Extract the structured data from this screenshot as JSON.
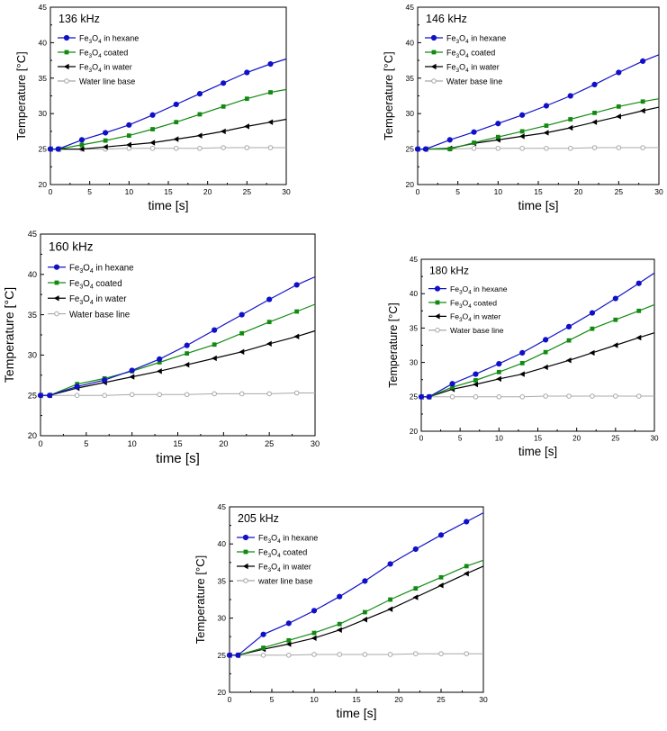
{
  "colors": {
    "hexane": "#1010c8",
    "coated": "#128a12",
    "water": "#000000",
    "base": "#a8a8a8"
  },
  "chart_data": [
    {
      "type": "line",
      "title": "136 kHz",
      "xlabel": "time [s]",
      "ylabel": "Temperature [°C]",
      "xlim": [
        0,
        30
      ],
      "ylim": [
        20,
        45
      ],
      "xticks": [
        0,
        5,
        10,
        15,
        20,
        25,
        30
      ],
      "yticks": [
        20,
        25,
        30,
        35,
        40,
        45
      ],
      "x": [
        0,
        1,
        4,
        7,
        10,
        13,
        16,
        19,
        22,
        25,
        28
      ],
      "series": [
        {
          "name": "Fe3O4 in hexane",
          "legend_main": "Fe",
          "legend_sub1": "3",
          "legend_mid": "O",
          "legend_sub2": "4",
          "legend_tail": " in hexane",
          "marker": "circle",
          "color_key": "hexane",
          "values": [
            25,
            25,
            26.3,
            27.3,
            28.4,
            29.8,
            31.3,
            32.8,
            34.3,
            35.8,
            37.0
          ],
          "end": 37.7
        },
        {
          "name": "Fe3O4 coated",
          "legend_main": "Fe",
          "legend_sub1": "3",
          "legend_mid": "O",
          "legend_sub2": "4",
          "legend_tail": " coated",
          "marker": "square",
          "color_key": "coated",
          "values": [
            25,
            25,
            25.6,
            26.2,
            26.9,
            27.8,
            28.8,
            29.9,
            31.0,
            32.1,
            33.0
          ],
          "end": 33.4
        },
        {
          "name": "Fe3O4 in water",
          "legend_main": "Fe",
          "legend_sub1": "3",
          "legend_mid": "O",
          "legend_sub2": "4",
          "legend_tail": " in water",
          "marker": "triangle-left",
          "color_key": "water",
          "values": [
            25,
            25,
            25.0,
            25.3,
            25.6,
            25.9,
            26.4,
            26.9,
            27.5,
            28.2,
            28.8
          ],
          "end": 29.2
        },
        {
          "name": "Water line base",
          "legend_main": "Water line base",
          "legend_sub1": "",
          "legend_mid": "",
          "legend_sub2": "",
          "legend_tail": "",
          "marker": "open-circle",
          "color_key": "base",
          "values": [
            25,
            25,
            25.0,
            25.0,
            25.1,
            25.1,
            25.1,
            25.1,
            25.2,
            25.2,
            25.2
          ],
          "end": 25.2
        }
      ]
    },
    {
      "type": "line",
      "title": "146 kHz",
      "xlabel": "time [s]",
      "ylabel": "Temperature [°C]",
      "xlim": [
        0,
        30
      ],
      "ylim": [
        20,
        45
      ],
      "xticks": [
        0,
        5,
        10,
        15,
        20,
        25,
        30
      ],
      "yticks": [
        20,
        25,
        30,
        35,
        40,
        45
      ],
      "x": [
        0,
        1,
        4,
        7,
        10,
        13,
        16,
        19,
        22,
        25,
        28
      ],
      "series": [
        {
          "name": "Fe3O4 in hexane",
          "legend_main": "Fe",
          "legend_sub1": "3",
          "legend_mid": "O",
          "legend_sub2": "4",
          "legend_tail": " in hexane",
          "marker": "circle",
          "color_key": "hexane",
          "values": [
            25,
            25,
            26.3,
            27.4,
            28.6,
            29.8,
            31.1,
            32.5,
            34.1,
            35.8,
            37.4
          ],
          "end": 38.3
        },
        {
          "name": "Fe3O4 coated",
          "legend_main": "Fe",
          "legend_sub1": "3",
          "legend_mid": "O",
          "legend_sub2": "4",
          "legend_tail": " coated",
          "marker": "square",
          "color_key": "coated",
          "values": [
            25,
            25,
            25.0,
            25.9,
            26.7,
            27.5,
            28.3,
            29.2,
            30.1,
            31.0,
            31.7
          ],
          "end": 32.1
        },
        {
          "name": "Fe3O4 in water",
          "legend_main": "Fe",
          "legend_sub1": "3",
          "legend_mid": "O",
          "legend_sub2": "4",
          "legend_tail": " in water",
          "marker": "triangle-left",
          "color_key": "water",
          "values": [
            25,
            25,
            25.1,
            25.8,
            26.3,
            26.8,
            27.3,
            28.0,
            28.8,
            29.6,
            30.4
          ],
          "end": 30.9
        },
        {
          "name": "Water base line",
          "legend_main": "Water base line",
          "legend_sub1": "",
          "legend_mid": "",
          "legend_sub2": "",
          "legend_tail": "",
          "marker": "open-circle",
          "color_key": "base",
          "values": [
            25,
            25,
            25.0,
            25.1,
            25.1,
            25.1,
            25.1,
            25.1,
            25.2,
            25.2,
            25.2
          ],
          "end": 25.2
        }
      ]
    },
    {
      "type": "line",
      "title": "160 kHz",
      "xlabel": "time [s]",
      "ylabel": "Temperature [°C]",
      "xlim": [
        0,
        30
      ],
      "ylim": [
        20,
        45
      ],
      "xticks": [
        0,
        5,
        10,
        15,
        20,
        25,
        30
      ],
      "yticks": [
        20,
        25,
        30,
        35,
        40,
        45
      ],
      "x": [
        0,
        1,
        4,
        7,
        10,
        13,
        16,
        19,
        22,
        25,
        28
      ],
      "series": [
        {
          "name": "Fe3O4 in hexane",
          "legend_main": "Fe",
          "legend_sub1": "3",
          "legend_mid": "O",
          "legend_sub2": "4",
          "legend_tail": " in hexane",
          "marker": "circle",
          "color_key": "hexane",
          "values": [
            25,
            25,
            26.1,
            26.9,
            28.1,
            29.5,
            31.2,
            33.1,
            35.0,
            36.9,
            38.7
          ],
          "end": 39.7
        },
        {
          "name": "Fe3O4 coated",
          "legend_main": "Fe",
          "legend_sub1": "3",
          "legend_mid": "O",
          "legend_sub2": "4",
          "legend_tail": " coated",
          "marker": "square",
          "color_key": "coated",
          "values": [
            25,
            25,
            26.4,
            27.1,
            28.0,
            29.1,
            30.2,
            31.3,
            32.7,
            34.1,
            35.4
          ],
          "end": 36.3
        },
        {
          "name": "Fe3O4 in water",
          "legend_main": "Fe",
          "legend_sub1": "3",
          "legend_mid": "O",
          "legend_sub2": "4",
          "legend_tail": " in water",
          "marker": "triangle-left",
          "color_key": "water",
          "values": [
            25,
            25,
            25.9,
            26.6,
            27.3,
            28.0,
            28.8,
            29.6,
            30.4,
            31.4,
            32.3
          ],
          "end": 33.0
        },
        {
          "name": "Water base line",
          "legend_main": "Water base line",
          "legend_sub1": "",
          "legend_mid": "",
          "legend_sub2": "",
          "legend_tail": "",
          "marker": "open-circle",
          "color_key": "base",
          "values": [
            25,
            25,
            25.0,
            25.0,
            25.1,
            25.1,
            25.1,
            25.2,
            25.2,
            25.2,
            25.3
          ],
          "end": 25.3
        }
      ]
    },
    {
      "type": "line",
      "title": "180 kHz",
      "xlabel": "time [s]",
      "ylabel": "Temperature [°C]",
      "xlim": [
        0,
        30
      ],
      "ylim": [
        20,
        45
      ],
      "xticks": [
        0,
        5,
        10,
        15,
        20,
        25,
        30
      ],
      "yticks": [
        20,
        25,
        30,
        35,
        40,
        45
      ],
      "x": [
        0,
        1,
        4,
        7,
        10,
        13,
        16,
        19,
        22,
        25,
        28
      ],
      "series": [
        {
          "name": "Fe3O4 in hexane",
          "legend_main": "Fe",
          "legend_sub1": "3",
          "legend_mid": "O",
          "legend_sub2": "4",
          "legend_tail": " in hexane",
          "marker": "circle",
          "color_key": "hexane",
          "values": [
            25,
            25,
            26.9,
            28.3,
            29.8,
            31.4,
            33.3,
            35.2,
            37.2,
            39.3,
            41.5
          ],
          "end": 43.0
        },
        {
          "name": "Fe3O4 coated",
          "legend_main": "Fe",
          "legend_sub1": "3",
          "legend_mid": "O",
          "legend_sub2": "4",
          "legend_tail": " coated",
          "marker": "square",
          "color_key": "coated",
          "values": [
            25,
            25,
            26.4,
            27.4,
            28.6,
            29.9,
            31.5,
            33.2,
            34.9,
            36.2,
            37.5
          ],
          "end": 38.4
        },
        {
          "name": "Fe3O4 in water",
          "legend_main": "Fe",
          "legend_sub1": "3",
          "legend_mid": "O",
          "legend_sub2": "4",
          "legend_tail": " in water",
          "marker": "triangle-left",
          "color_key": "water",
          "values": [
            25,
            25,
            26.1,
            26.8,
            27.6,
            28.3,
            29.3,
            30.3,
            31.4,
            32.5,
            33.6
          ],
          "end": 34.3
        },
        {
          "name": "Water base line",
          "legend_main": "Water base line",
          "legend_sub1": "",
          "legend_mid": "",
          "legend_sub2": "",
          "legend_tail": "",
          "marker": "open-circle",
          "color_key": "base",
          "values": [
            25,
            25,
            25.0,
            25.0,
            25.0,
            25.0,
            25.1,
            25.1,
            25.1,
            25.1,
            25.1
          ],
          "end": 25.1
        }
      ]
    },
    {
      "type": "line",
      "title": "205 kHz",
      "xlabel": "time [s]",
      "ylabel": "Temperature [°C]",
      "xlim": [
        0,
        30
      ],
      "ylim": [
        20,
        45
      ],
      "xticks": [
        0,
        5,
        10,
        15,
        20,
        25,
        30
      ],
      "yticks": [
        20,
        25,
        30,
        35,
        40,
        45
      ],
      "x": [
        0,
        1,
        4,
        7,
        10,
        13,
        16,
        19,
        22,
        25,
        28
      ],
      "series": [
        {
          "name": "Fe3O4 in hexane",
          "legend_main": "Fe",
          "legend_sub1": "3",
          "legend_mid": "O",
          "legend_sub2": "4",
          "legend_tail": " in hexane",
          "marker": "circle",
          "color_key": "hexane",
          "values": [
            25,
            25,
            27.8,
            29.3,
            31.0,
            32.9,
            35.0,
            37.3,
            39.3,
            41.2,
            43.0
          ],
          "end": 44.2
        },
        {
          "name": "Fe3O4 coated",
          "legend_main": "Fe",
          "legend_sub1": "3",
          "legend_mid": "O",
          "legend_sub2": "4",
          "legend_tail": " coated",
          "marker": "square",
          "color_key": "coated",
          "values": [
            25,
            25,
            26.0,
            27.0,
            28.0,
            29.2,
            30.8,
            32.5,
            34.0,
            35.5,
            37.0
          ],
          "end": 37.8
        },
        {
          "name": "Fe3O4 in water",
          "legend_main": "Fe",
          "legend_sub1": "3",
          "legend_mid": "O",
          "legend_sub2": "4",
          "legend_tail": " in water",
          "marker": "triangle-left",
          "color_key": "water",
          "values": [
            25,
            25,
            25.8,
            26.5,
            27.3,
            28.4,
            29.8,
            31.2,
            32.8,
            34.4,
            36.0
          ],
          "end": 37.0
        },
        {
          "name": "water line base",
          "legend_main": "water line base",
          "legend_sub1": "",
          "legend_mid": "",
          "legend_sub2": "",
          "legend_tail": "",
          "marker": "open-circle",
          "color_key": "base",
          "values": [
            25,
            25,
            25.0,
            25.0,
            25.1,
            25.1,
            25.1,
            25.1,
            25.2,
            25.2,
            25.2
          ],
          "end": 25.2
        }
      ]
    }
  ]
}
